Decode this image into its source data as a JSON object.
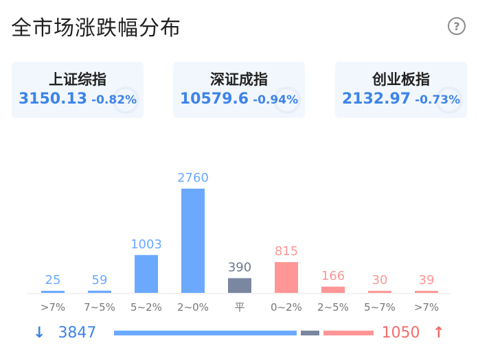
{
  "title": "全市场涨跌幅分布",
  "help_icon": "question-circle-icon",
  "indices": [
    {
      "name": "上证综指",
      "price": "3150.13",
      "change": "-0.82%"
    },
    {
      "name": "深证成指",
      "price": "10579.6",
      "change": "-0.94%"
    },
    {
      "name": "创业板指",
      "price": "2132.97",
      "change": "-0.73%"
    }
  ],
  "colors": {
    "down": "#6aa9ff",
    "flat": "#7b87a0",
    "up": "#ff9696",
    "down_text": "#3d84e8",
    "up_text": "#f06e6e"
  },
  "chart_data": {
    "type": "bar",
    "categories": [
      ">7%",
      "7~5%",
      "5~2%",
      "2~0%",
      "平",
      "0~2%",
      "2~5%",
      "5~7%",
      ">7%"
    ],
    "values": [
      25,
      59,
      1003,
      2760,
      390,
      815,
      166,
      30,
      39
    ],
    "groups": [
      "down",
      "down",
      "down",
      "down",
      "flat",
      "up",
      "up",
      "up",
      "up"
    ],
    "ylim": [
      0,
      2760
    ],
    "grid": false
  },
  "summary": {
    "down_count": "3847",
    "up_count": "1050",
    "down_icon": "arrow-down-icon",
    "up_icon": "arrow-up-icon"
  }
}
